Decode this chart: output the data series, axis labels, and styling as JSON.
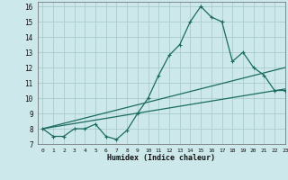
{
  "xlabel": "Humidex (Indice chaleur)",
  "xlim": [
    -0.5,
    23
  ],
  "ylim": [
    7,
    16.3
  ],
  "yticks": [
    7,
    8,
    9,
    10,
    11,
    12,
    13,
    14,
    15,
    16
  ],
  "xticks": [
    0,
    1,
    2,
    3,
    4,
    5,
    6,
    7,
    8,
    9,
    10,
    11,
    12,
    13,
    14,
    15,
    16,
    17,
    18,
    19,
    20,
    21,
    22,
    23
  ],
  "bg_color": "#cce8ea",
  "grid_color": "#aacccc",
  "line_color": "#1a6b60",
  "line1_x": [
    0,
    1,
    2,
    3,
    4,
    5,
    6,
    7,
    8,
    9,
    10,
    11,
    12,
    13,
    14,
    15,
    16,
    17,
    18,
    19,
    20,
    21,
    22,
    23
  ],
  "line1_y": [
    8.0,
    7.5,
    7.5,
    8.0,
    8.0,
    8.3,
    7.5,
    7.3,
    7.9,
    9.0,
    10.0,
    11.5,
    12.8,
    13.5,
    15.0,
    16.0,
    15.3,
    15.0,
    12.4,
    13.0,
    12.0,
    11.5,
    10.5,
    10.5
  ],
  "line2_x": [
    0,
    23
  ],
  "line2_y": [
    8.0,
    10.6
  ],
  "line3_x": [
    0,
    23
  ],
  "line3_y": [
    8.0,
    12.0
  ],
  "markersize": 2.5,
  "linewidth": 0.9
}
